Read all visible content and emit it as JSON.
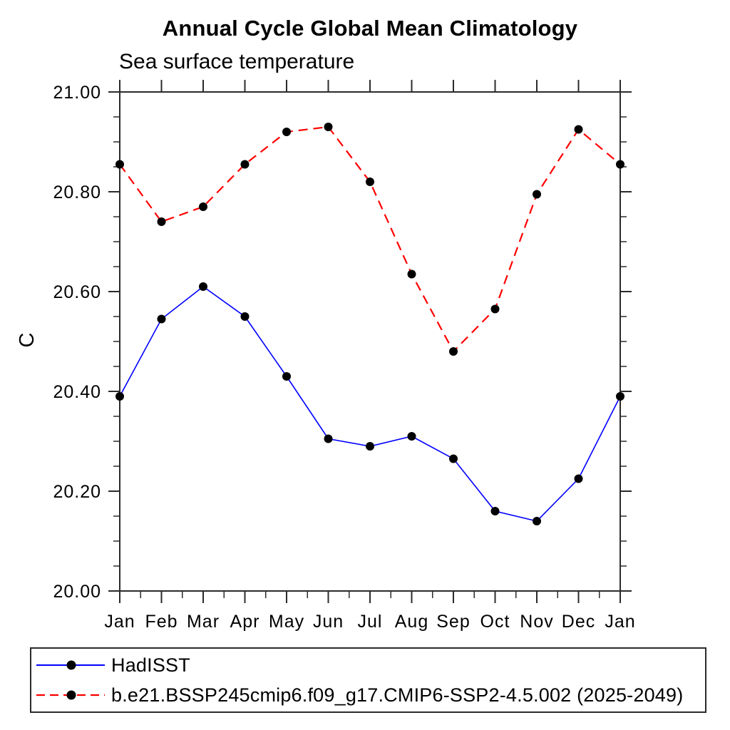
{
  "page": {
    "background": "#ffffff",
    "text_color": "#000000",
    "axis_color": "#2b2b2b"
  },
  "chart_data": {
    "type": "line",
    "title": "Annual Cycle Global Mean Climatology",
    "subtitle": "Sea surface temperature",
    "ylabel": "C",
    "xlabel": "",
    "grid": false,
    "legend_position": "bottom-left",
    "x_categories": [
      "Jan",
      "Feb",
      "Mar",
      "Apr",
      "May",
      "Jun",
      "Jul",
      "Aug",
      "Sep",
      "Oct",
      "Nov",
      "Dec",
      "Jan"
    ],
    "ylim": [
      20.0,
      21.0
    ],
    "y_tick_values": [
      21.0,
      20.8,
      20.6,
      20.4,
      20.2,
      20.0
    ],
    "y_tick_labels": [
      "21.00",
      "20.80",
      "20.60",
      "20.40",
      "20.20",
      "20.00"
    ],
    "y_minor_step": 0.05,
    "marker": "filled-circle",
    "marker_color": "#000000",
    "series": [
      {
        "name": "HadISST",
        "color": "#0000ff",
        "line_style": "solid",
        "values": [
          20.39,
          20.545,
          20.61,
          20.55,
          20.43,
          20.305,
          20.29,
          20.31,
          20.265,
          20.16,
          20.14,
          20.225,
          20.39
        ]
      },
      {
        "name": "b.e21.BSSP245cmip6.f09_g17.CMIP6-SSP2-4.5.002 (2025-2049)",
        "color": "#ff0000",
        "line_style": "dashed",
        "values": [
          20.855,
          20.74,
          20.77,
          20.855,
          20.92,
          20.93,
          20.82,
          20.635,
          20.48,
          20.565,
          20.795,
          20.925,
          20.855
        ]
      }
    ]
  }
}
